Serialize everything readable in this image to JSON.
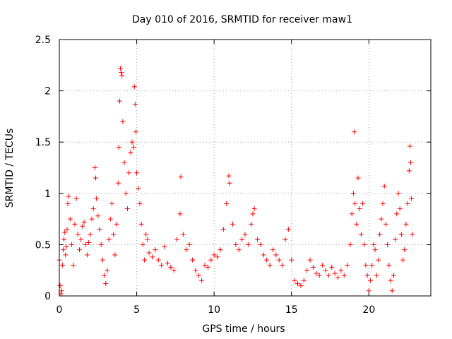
{
  "chart_data": {
    "type": "scatter",
    "title": "Day 010 of 2016, SRMTID for receiver maw1",
    "xlabel": "GPS time / hours",
    "ylabel": "SRMTID / TECUs",
    "xlim": [
      0,
      24
    ],
    "ylim": [
      0,
      2.5
    ],
    "xticks": [
      0,
      5,
      10,
      15,
      20
    ],
    "yticks": [
      0,
      0.5,
      1,
      1.5,
      2,
      2.5
    ],
    "xtick_labels": [
      "0",
      "5",
      "10",
      "15",
      "20"
    ],
    "ytick_labels": [
      "0",
      "0.5",
      "1",
      "1.5",
      "2",
      "2.5"
    ],
    "grid": true,
    "marker": "+",
    "series": [
      {
        "name": "maw1",
        "color": "#ff0000",
        "points": [
          [
            0.0,
            0.35
          ],
          [
            0.05,
            0.1
          ],
          [
            0.1,
            0.02
          ],
          [
            0.15,
            0.05
          ],
          [
            0.2,
            0.3
          ],
          [
            0.25,
            0.45
          ],
          [
            0.3,
            0.55
          ],
          [
            0.35,
            0.62
          ],
          [
            0.4,
            0.4
          ],
          [
            0.45,
            0.48
          ],
          [
            0.5,
            0.65
          ],
          [
            0.55,
            0.9
          ],
          [
            0.6,
            0.97
          ],
          [
            0.7,
            0.75
          ],
          [
            0.8,
            0.5
          ],
          [
            0.9,
            0.3
          ],
          [
            1.0,
            0.7
          ],
          [
            1.1,
            0.95
          ],
          [
            1.2,
            0.6
          ],
          [
            1.3,
            0.45
          ],
          [
            1.4,
            0.55
          ],
          [
            1.5,
            0.68
          ],
          [
            1.6,
            0.72
          ],
          [
            1.7,
            0.5
          ],
          [
            1.8,
            0.4
          ],
          [
            1.9,
            0.52
          ],
          [
            2.0,
            0.6
          ],
          [
            2.1,
            0.75
          ],
          [
            2.2,
            0.85
          ],
          [
            2.3,
            1.25
          ],
          [
            2.35,
            1.15
          ],
          [
            2.4,
            0.95
          ],
          [
            2.5,
            0.78
          ],
          [
            2.6,
            0.65
          ],
          [
            2.7,
            0.5
          ],
          [
            2.8,
            0.35
          ],
          [
            2.9,
            0.2
          ],
          [
            3.0,
            0.12
          ],
          [
            3.1,
            0.25
          ],
          [
            3.2,
            0.55
          ],
          [
            3.3,
            0.75
          ],
          [
            3.4,
            0.9
          ],
          [
            3.5,
            0.6
          ],
          [
            3.6,
            0.4
          ],
          [
            3.7,
            0.7
          ],
          [
            3.8,
            1.1
          ],
          [
            3.85,
            1.45
          ],
          [
            3.9,
            1.9
          ],
          [
            3.95,
            2.22
          ],
          [
            4.0,
            2.18
          ],
          [
            4.05,
            2.15
          ],
          [
            4.1,
            1.7
          ],
          [
            4.2,
            1.3
          ],
          [
            4.3,
            1.0
          ],
          [
            4.4,
            0.85
          ],
          [
            4.5,
            1.2
          ],
          [
            4.6,
            1.4
          ],
          [
            4.7,
            1.5
          ],
          [
            4.8,
            1.45
          ],
          [
            4.85,
            2.04
          ],
          [
            4.9,
            1.87
          ],
          [
            4.95,
            1.6
          ],
          [
            5.0,
            1.2
          ],
          [
            5.1,
            1.05
          ],
          [
            5.2,
            0.9
          ],
          [
            5.3,
            0.7
          ],
          [
            5.4,
            0.5
          ],
          [
            5.5,
            0.35
          ],
          [
            5.6,
            0.6
          ],
          [
            5.7,
            0.55
          ],
          [
            5.8,
            0.42
          ],
          [
            6.0,
            0.38
          ],
          [
            6.2,
            0.45
          ],
          [
            6.4,
            0.35
          ],
          [
            6.6,
            0.3
          ],
          [
            6.8,
            0.48
          ],
          [
            7.0,
            0.32
          ],
          [
            7.2,
            0.28
          ],
          [
            7.4,
            0.25
          ],
          [
            7.6,
            0.55
          ],
          [
            7.8,
            0.8
          ],
          [
            7.85,
            1.16
          ],
          [
            8.0,
            0.6
          ],
          [
            8.2,
            0.45
          ],
          [
            8.4,
            0.5
          ],
          [
            8.6,
            0.35
          ],
          [
            8.8,
            0.25
          ],
          [
            9.0,
            0.2
          ],
          [
            9.2,
            0.15
          ],
          [
            9.4,
            0.3
          ],
          [
            9.6,
            0.28
          ],
          [
            9.8,
            0.35
          ],
          [
            10.0,
            0.4
          ],
          [
            10.2,
            0.38
          ],
          [
            10.4,
            0.45
          ],
          [
            10.6,
            0.65
          ],
          [
            10.8,
            0.9
          ],
          [
            10.95,
            1.17
          ],
          [
            11.0,
            1.1
          ],
          [
            11.2,
            0.7
          ],
          [
            11.4,
            0.5
          ],
          [
            11.6,
            0.45
          ],
          [
            11.8,
            0.55
          ],
          [
            12.0,
            0.6
          ],
          [
            12.2,
            0.5
          ],
          [
            12.4,
            0.7
          ],
          [
            12.5,
            0.8
          ],
          [
            12.6,
            0.85
          ],
          [
            12.8,
            0.55
          ],
          [
            13.0,
            0.5
          ],
          [
            13.2,
            0.4
          ],
          [
            13.4,
            0.35
          ],
          [
            13.6,
            0.3
          ],
          [
            13.8,
            0.45
          ],
          [
            14.0,
            0.4
          ],
          [
            14.2,
            0.35
          ],
          [
            14.4,
            0.3
          ],
          [
            14.6,
            0.55
          ],
          [
            14.8,
            0.65
          ],
          [
            15.0,
            0.35
          ],
          [
            15.2,
            0.15
          ],
          [
            15.4,
            0.12
          ],
          [
            15.6,
            0.1
          ],
          [
            15.8,
            0.15
          ],
          [
            16.0,
            0.25
          ],
          [
            16.2,
            0.35
          ],
          [
            16.4,
            0.28
          ],
          [
            16.6,
            0.22
          ],
          [
            16.8,
            0.2
          ],
          [
            17.0,
            0.3
          ],
          [
            17.2,
            0.25
          ],
          [
            17.4,
            0.2
          ],
          [
            17.6,
            0.28
          ],
          [
            17.8,
            0.22
          ],
          [
            18.0,
            0.18
          ],
          [
            18.2,
            0.25
          ],
          [
            18.4,
            0.2
          ],
          [
            18.6,
            0.3
          ],
          [
            18.8,
            0.5
          ],
          [
            18.9,
            0.8
          ],
          [
            19.0,
            1.0
          ],
          [
            19.05,
            1.6
          ],
          [
            19.1,
            0.9
          ],
          [
            19.2,
            0.7
          ],
          [
            19.3,
            1.15
          ],
          [
            19.4,
            0.85
          ],
          [
            19.5,
            0.6
          ],
          [
            19.6,
            0.9
          ],
          [
            19.7,
            0.5
          ],
          [
            19.8,
            0.3
          ],
          [
            19.9,
            0.2
          ],
          [
            20.0,
            0.05
          ],
          [
            20.1,
            0.15
          ],
          [
            20.2,
            0.3
          ],
          [
            20.3,
            0.5
          ],
          [
            20.4,
            0.45
          ],
          [
            20.5,
            0.2
          ],
          [
            20.6,
            0.35
          ],
          [
            20.7,
            0.6
          ],
          [
            20.8,
            0.75
          ],
          [
            20.9,
            0.9
          ],
          [
            21.0,
            1.07
          ],
          [
            21.1,
            0.7
          ],
          [
            21.2,
            0.5
          ],
          [
            21.3,
            0.3
          ],
          [
            21.4,
            0.15
          ],
          [
            21.5,
            0.05
          ],
          [
            21.6,
            0.2
          ],
          [
            21.7,
            0.55
          ],
          [
            21.8,
            0.8
          ],
          [
            21.9,
            1.0
          ],
          [
            22.0,
            0.85
          ],
          [
            22.1,
            0.6
          ],
          [
            22.2,
            0.35
          ],
          [
            22.3,
            0.45
          ],
          [
            22.4,
            0.7
          ],
          [
            22.5,
            0.9
          ],
          [
            22.6,
            1.22
          ],
          [
            22.65,
            1.46
          ],
          [
            22.7,
            1.3
          ],
          [
            22.75,
            0.95
          ],
          [
            22.8,
            0.6
          ]
        ]
      }
    ]
  }
}
